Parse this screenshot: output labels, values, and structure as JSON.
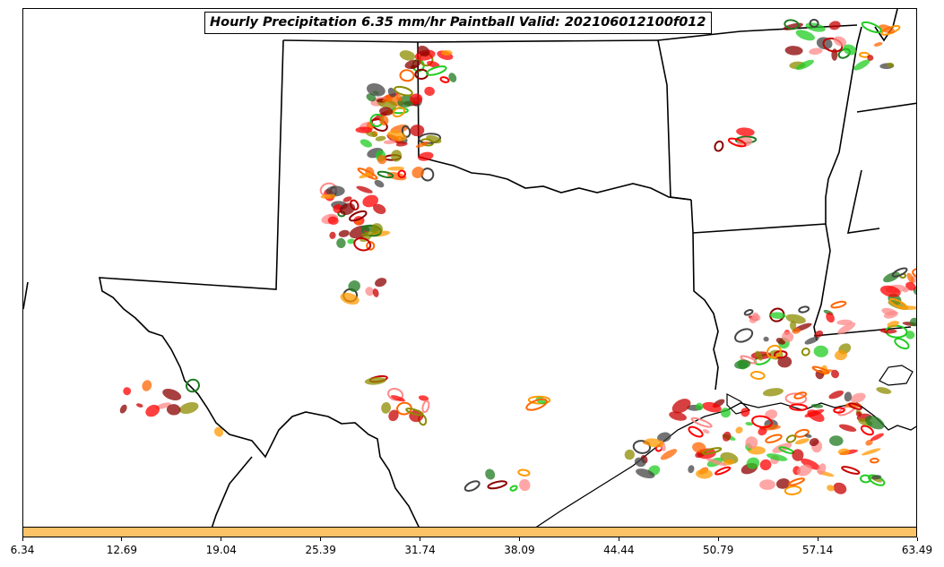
{
  "title": "Hourly Precipitation 6.35 mm/hr Paintball Valid: 202106012100f012",
  "colorbar": {
    "color": "#fbc266",
    "tick_labels": [
      "6.34",
      "12.69",
      "19.04",
      "25.39",
      "31.74",
      "38.09",
      "44.44",
      "50.79",
      "57.14",
      "63.49"
    ]
  },
  "member_colors": [
    "#ff0000",
    "#c80000",
    "#8b0000",
    "#ff9900",
    "#ff6600",
    "#22cc22",
    "#1f7a1f",
    "#8c8c00",
    "#444444",
    "#ff8a8a"
  ],
  "icons": [
    "state-boundary-lines",
    "coastline",
    "paintball-precipitation-blobs"
  ]
}
